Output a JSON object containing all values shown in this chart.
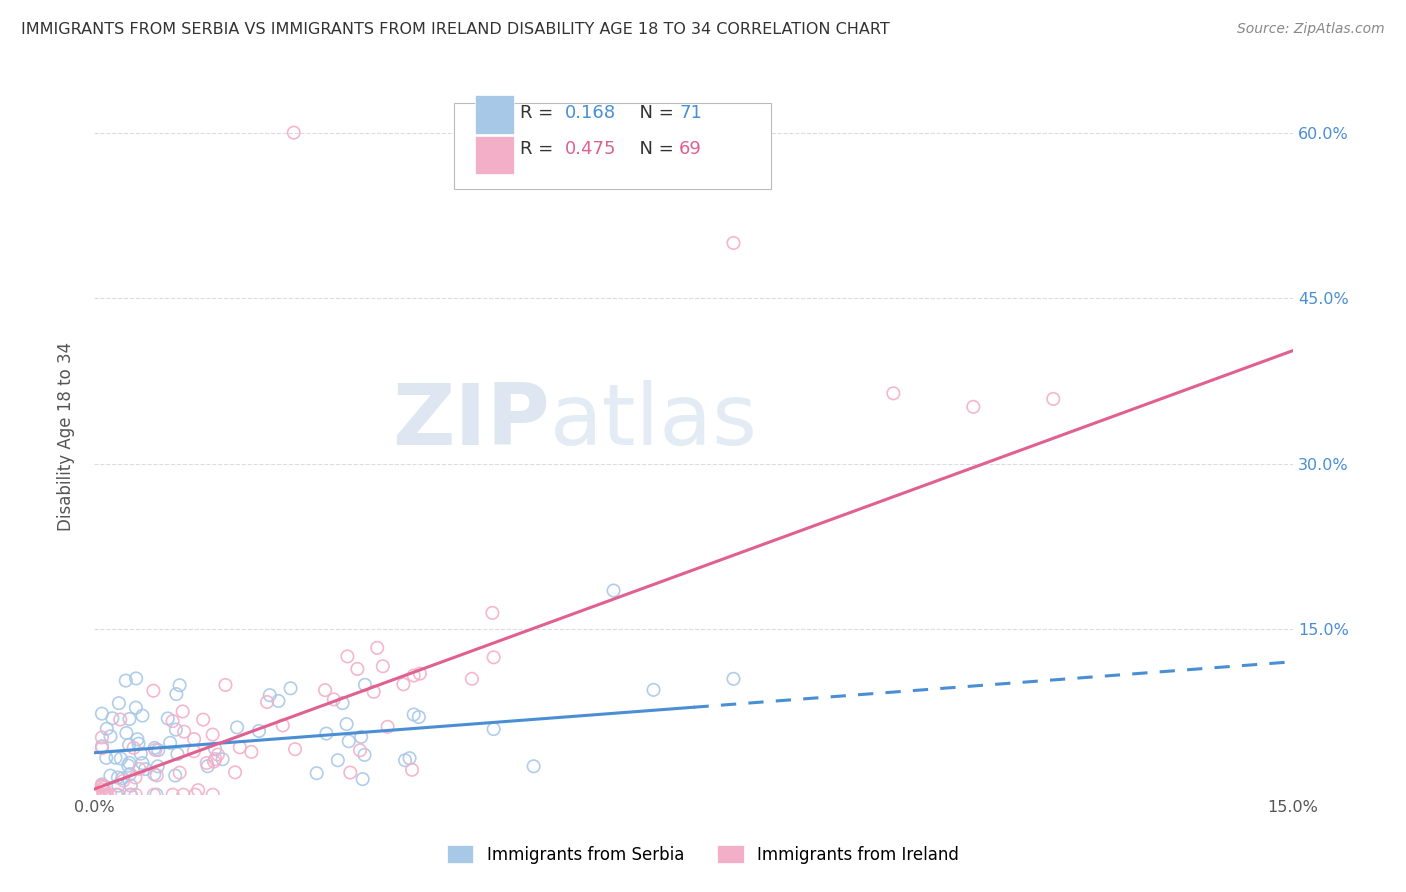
{
  "title": "IMMIGRANTS FROM SERBIA VS IMMIGRANTS FROM IRELAND DISABILITY AGE 18 TO 34 CORRELATION CHART",
  "source": "Source: ZipAtlas.com",
  "ylabel": "Disability Age 18 to 34",
  "xlim": [
    0.0,
    0.15
  ],
  "ylim": [
    0.0,
    0.65
  ],
  "serbia_color": "#a8c8e8",
  "ireland_color": "#f4afc8",
  "serbia_R": 0.168,
  "serbia_N": 71,
  "ireland_R": 0.475,
  "ireland_N": 69,
  "serbia_line_color": "#4a8fd4",
  "ireland_line_color": "#e06090",
  "serbia_line_solid_end": 0.075,
  "ireland_line_slope": 2.65,
  "ireland_line_intercept": 0.005,
  "serbia_line_slope": 0.55,
  "serbia_line_intercept": 0.038,
  "background_color": "#ffffff",
  "grid_color": "#d8d8e8",
  "right_tick_color": "#4a8fd4",
  "title_color": "#333333",
  "source_color": "#888888",
  "watermark_color": "#c8d8e8",
  "legend_text_color": "#333333",
  "legend_value_color": "#4a8fd4",
  "ireland_legend_value_color": "#e06090"
}
